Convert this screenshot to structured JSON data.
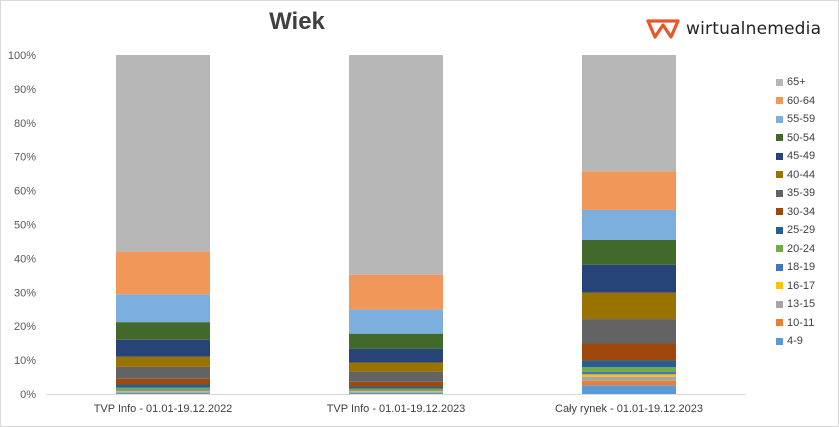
{
  "header": {
    "title": "Wiek",
    "brand": "wirtualnemedia",
    "brand_color": "#e8562a"
  },
  "chart_data": {
    "type": "bar",
    "stacked": true,
    "percent_axis": true,
    "title": "Wiek",
    "xlabel": "",
    "ylabel": "",
    "ylim": [
      0,
      100
    ],
    "yticks": [
      "0%",
      "10%",
      "20%",
      "30%",
      "40%",
      "50%",
      "60%",
      "70%",
      "80%",
      "90%",
      "100%"
    ],
    "grid": false,
    "legend_position": "right",
    "categories": [
      "TVP Info - 01.01-19.12.2022",
      "TVP Info - 01.01-19.12.2023",
      "Cały rynek - 01.01-19.12.2023"
    ],
    "series": [
      {
        "name": "4-9",
        "color": "#5b9bd5",
        "values": [
          0.3,
          0.3,
          2.6
        ]
      },
      {
        "name": "10-11",
        "color": "#ed7d31",
        "values": [
          0.1,
          0.1,
          1.3
        ]
      },
      {
        "name": "13-15",
        "color": "#a5a5a5",
        "values": [
          0.4,
          0.3,
          1.2
        ]
      },
      {
        "name": "16-17",
        "color": "#ffc000",
        "values": [
          0.2,
          0.2,
          0.7
        ]
      },
      {
        "name": "18-19",
        "color": "#4472c4",
        "values": [
          0.3,
          0.2,
          0.7
        ]
      },
      {
        "name": "20-24",
        "color": "#70ad47",
        "values": [
          0.6,
          0.5,
          1.4
        ]
      },
      {
        "name": "25-29",
        "color": "#255e91",
        "values": [
          0.9,
          0.6,
          2.0
        ]
      },
      {
        "name": "30-34",
        "color": "#9e480e",
        "values": [
          1.7,
          1.4,
          5.0
        ]
      },
      {
        "name": "35-39",
        "color": "#636363",
        "values": [
          3.5,
          3.0,
          7.2
        ]
      },
      {
        "name": "40-44",
        "color": "#997300",
        "values": [
          3.0,
          2.7,
          7.8
        ]
      },
      {
        "name": "45-49",
        "color": "#264478",
        "values": [
          5.0,
          4.0,
          8.2
        ]
      },
      {
        "name": "50-54",
        "color": "#43682b",
        "values": [
          5.2,
          4.5,
          7.4
        ]
      },
      {
        "name": "55-59",
        "color": "#7cafdd",
        "values": [
          8.2,
          7.1,
          8.8
        ]
      },
      {
        "name": "60-64",
        "color": "#f1975a",
        "values": [
          12.6,
          10.3,
          11.4
        ]
      },
      {
        "name": "65+",
        "color": "#b7b7b7",
        "values": [
          58.0,
          64.8,
          34.3
        ]
      }
    ]
  }
}
